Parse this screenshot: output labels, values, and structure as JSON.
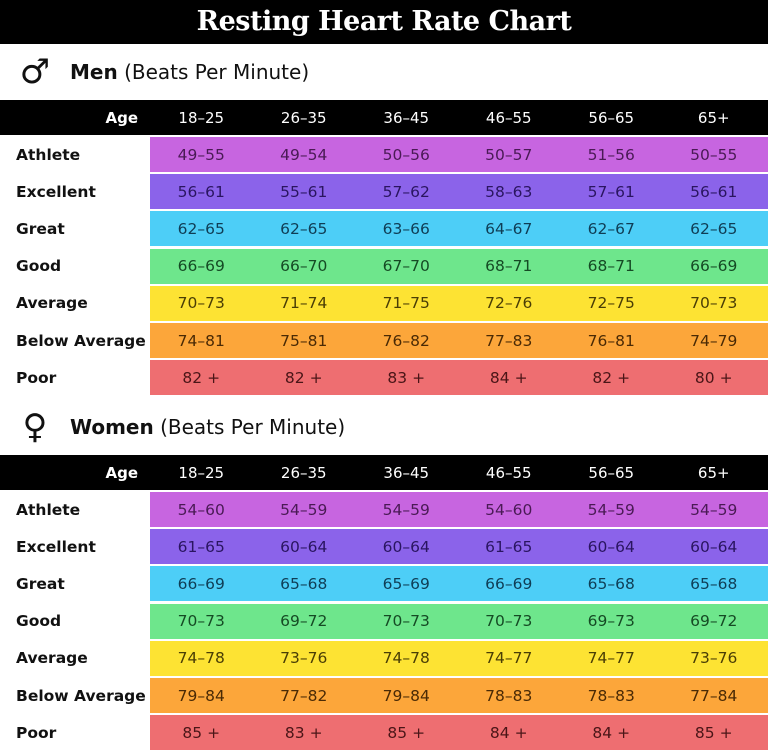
{
  "title": "Resting Heart Rate Chart",
  "age_label": "Age",
  "age_groups": [
    "18–25",
    "26–35",
    "36–45",
    "46–55",
    "56–65",
    "65+"
  ],
  "categories": [
    "Athlete",
    "Excellent",
    "Great",
    "Good",
    "Average",
    "Below Average",
    "Poor"
  ],
  "row_colors": {
    "Athlete": "#c765e0",
    "Excellent": "#8b63ea",
    "Great": "#4dcef7",
    "Good": "#6ee68c",
    "Average": "#fde333",
    "Below Average": "#fca63a",
    "Poor": "#ee6e71"
  },
  "text_colors": {
    "Athlete": "#4a1a55",
    "Excellent": "#2a1560",
    "Great": "#0f3d55",
    "Good": "#154a24",
    "Average": "#4a3e05",
    "Below Average": "#4a2a05",
    "Poor": "#4a1517"
  },
  "men": {
    "symbol": "♂",
    "symbol_icon": "male-symbol-icon",
    "heading_bold": "Men",
    "heading_sub": " (Beats Per Minute)",
    "rows": [
      [
        "49–55",
        "49–54",
        "50–56",
        "50–57",
        "51–56",
        "50–55"
      ],
      [
        "56–61",
        "55–61",
        "57–62",
        "58–63",
        "57–61",
        "56–61"
      ],
      [
        "62–65",
        "62–65",
        "63–66",
        "64–67",
        "62–67",
        "62–65"
      ],
      [
        "66–69",
        "66–70",
        "67–70",
        "68–71",
        "68–71",
        "66–69"
      ],
      [
        "70–73",
        "71–74",
        "71–75",
        "72–76",
        "72–75",
        "70–73"
      ],
      [
        "74–81",
        "75–81",
        "76–82",
        "77–83",
        "76–81",
        "74–79"
      ],
      [
        "82 +",
        "82 +",
        "83 +",
        "84 +",
        "82 +",
        "80 +"
      ]
    ]
  },
  "women": {
    "symbol": "♀",
    "symbol_icon": "female-symbol-icon",
    "heading_bold": "Women",
    "heading_sub": " (Beats Per Minute)",
    "rows": [
      [
        "54–60",
        "54–59",
        "54–59",
        "54–60",
        "54–59",
        "54–59"
      ],
      [
        "61–65",
        "60–64",
        "60–64",
        "61–65",
        "60–64",
        "60–64"
      ],
      [
        "66–69",
        "65–68",
        "65–69",
        "66–69",
        "65–68",
        "65–68"
      ],
      [
        "70–73",
        "69–72",
        "70–73",
        "70–73",
        "69–73",
        "69–72"
      ],
      [
        "74–78",
        "73–76",
        "74–78",
        "74–77",
        "74–77",
        "73–76"
      ],
      [
        "79–84",
        "77–82",
        "79–84",
        "78–83",
        "78–83",
        "77–84"
      ],
      [
        "85 +",
        "83 +",
        "85 +",
        "84 +",
        "84 +",
        "85 +"
      ]
    ]
  },
  "chart_data": {
    "type": "table",
    "title": "Resting Heart Rate Chart",
    "unit": "Beats Per Minute",
    "columns": [
      "18–25",
      "26–35",
      "36–45",
      "46–55",
      "56–65",
      "65+"
    ],
    "row_labels": [
      "Athlete",
      "Excellent",
      "Great",
      "Good",
      "Average",
      "Below Average",
      "Poor"
    ],
    "series": [
      {
        "name": "Men",
        "values": [
          [
            "49–55",
            "49–54",
            "50–56",
            "50–57",
            "51–56",
            "50–55"
          ],
          [
            "56–61",
            "55–61",
            "57–62",
            "58–63",
            "57–61",
            "56–61"
          ],
          [
            "62–65",
            "62–65",
            "63–66",
            "64–67",
            "62–67",
            "62–65"
          ],
          [
            "66–69",
            "66–70",
            "67–70",
            "68–71",
            "68–71",
            "66–69"
          ],
          [
            "70–73",
            "71–74",
            "71–75",
            "72–76",
            "72–75",
            "70–73"
          ],
          [
            "74–81",
            "75–81",
            "76–82",
            "77–83",
            "76–81",
            "74–79"
          ],
          [
            "82 +",
            "82 +",
            "83 +",
            "84 +",
            "82 +",
            "80 +"
          ]
        ]
      },
      {
        "name": "Women",
        "values": [
          [
            "54–60",
            "54–59",
            "54–59",
            "54–60",
            "54–59",
            "54–59"
          ],
          [
            "61–65",
            "60–64",
            "60–64",
            "61–65",
            "60–64",
            "60–64"
          ],
          [
            "66–69",
            "65–68",
            "65–69",
            "66–69",
            "65–68",
            "65–68"
          ],
          [
            "70–73",
            "69–72",
            "70–73",
            "70–73",
            "69–73",
            "69–72"
          ],
          [
            "74–78",
            "73–76",
            "74–78",
            "74–77",
            "74–77",
            "73–76"
          ],
          [
            "79–84",
            "77–82",
            "79–84",
            "78–83",
            "78–83",
            "77–84"
          ],
          [
            "85 +",
            "83 +",
            "85 +",
            "84 +",
            "84 +",
            "85 +"
          ]
        ]
      }
    ]
  }
}
